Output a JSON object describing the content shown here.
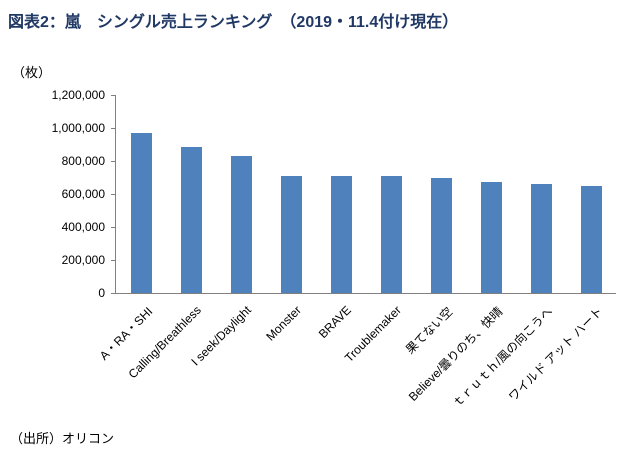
{
  "chart_data": {
    "type": "bar",
    "title": "図表2：嵐　シングル売上ランキング　（2019・11.4付け現在）",
    "unit_label": "（枚）",
    "source": "（出所）オリコン",
    "categories": [
      "A・RA・SHI",
      "Calling/Breathless",
      "I seek/Daylight",
      "Monster",
      "BRAVE",
      "Troublemaker",
      "果てない空",
      "Believe/曇りのち、快晴",
      "ｔｒｕｔｈ/風の向こうへ",
      "ワイルド アット ハート"
    ],
    "values": [
      970000,
      885000,
      830000,
      710000,
      710000,
      710000,
      700000,
      670000,
      660000,
      650000
    ],
    "ylim": [
      0,
      1200000
    ],
    "yticks": [
      0,
      200000,
      400000,
      600000,
      800000,
      1000000,
      1200000
    ],
    "bar_color": "#4F81BD",
    "grid": false,
    "legend": "none"
  }
}
